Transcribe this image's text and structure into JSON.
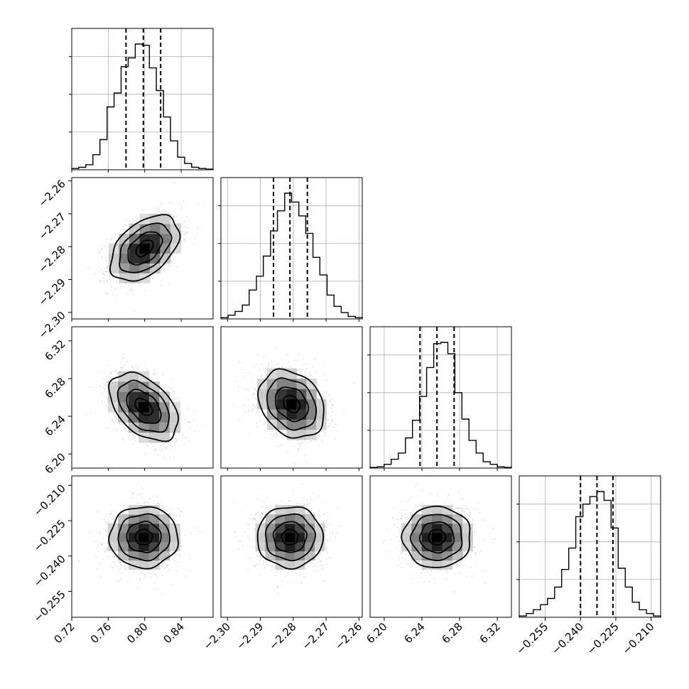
{
  "chart_data": {
    "type": "corner",
    "parameters": [
      {
        "ticks": [
          0.72,
          0.76,
          0.8,
          0.84
        ],
        "tick_labels": [
          "0.72",
          "0.76",
          "0.80",
          "0.84"
        ],
        "range": [
          0.72,
          0.875
        ],
        "mean": 0.7985,
        "std": 0.0188,
        "quantiles": [
          0.7795,
          0.7985,
          0.8175
        ],
        "hist": {
          "edges": [
            0.72,
            0.7277,
            0.7354,
            0.7432,
            0.7509,
            0.7587,
            0.7664,
            0.7741,
            0.7819,
            0.7896,
            0.7974,
            0.8051,
            0.8128,
            0.8206,
            0.8283,
            0.8361,
            0.8438,
            0.8515,
            0.8593,
            0.867,
            0.875
          ],
          "counts": [
            0.01,
            0.02,
            0.04,
            0.12,
            0.24,
            0.5,
            0.61,
            0.82,
            0.89,
            1.0,
            0.99,
            0.81,
            0.63,
            0.42,
            0.23,
            0.1,
            0.05,
            0.02,
            0.01,
            0.005
          ]
        }
      },
      {
        "ticks": [
          -2.3,
          -2.29,
          -2.28,
          -2.27,
          -2.26
        ],
        "tick_labels": [
          "−2.30",
          "−2.29",
          "−2.28",
          "−2.27",
          "−2.26"
        ],
        "range": [
          -2.302,
          -2.259
        ],
        "mean": -2.281,
        "std": 0.005,
        "quantiles": [
          -2.286,
          -2.281,
          -2.2757
        ],
        "hist": {
          "edges": [
            -2.302,
            -2.2998,
            -2.2977,
            -2.2955,
            -2.2934,
            -2.2912,
            -2.2891,
            -2.2869,
            -2.2848,
            -2.2826,
            -2.2805,
            -2.2783,
            -2.2762,
            -2.274,
            -2.2719,
            -2.2697,
            -2.2676,
            -2.2654,
            -2.2633,
            -2.2611,
            -2.259
          ],
          "counts": [
            0.01,
            0.03,
            0.06,
            0.11,
            0.23,
            0.34,
            0.5,
            0.7,
            0.86,
            1.0,
            0.93,
            0.82,
            0.68,
            0.49,
            0.35,
            0.19,
            0.1,
            0.05,
            0.02,
            0.01
          ]
        }
      },
      {
        "ticks": [
          6.2,
          6.24,
          6.28,
          6.32
        ],
        "tick_labels": [
          "6.20",
          "6.24",
          "6.28",
          "6.32"
        ],
        "range": [
          6.185,
          6.335
        ],
        "mean": 6.256,
        "std": 0.018,
        "quantiles": [
          6.238,
          6.256,
          6.2742
        ],
        "hist": {
          "edges": [
            6.185,
            6.1925,
            6.2,
            6.2075,
            6.215,
            6.2225,
            6.23,
            6.2375,
            6.245,
            6.2525,
            6.26,
            6.2675,
            6.275,
            6.2825,
            6.29,
            6.2975,
            6.305,
            6.3125,
            6.32,
            6.3275,
            6.335
          ],
          "counts": [
            0.005,
            0.01,
            0.03,
            0.07,
            0.12,
            0.24,
            0.38,
            0.57,
            0.8,
            0.99,
            1.0,
            0.91,
            0.6,
            0.39,
            0.22,
            0.12,
            0.05,
            0.03,
            0.01,
            0.005
          ]
        }
      },
      {
        "ticks": [
          -0.255,
          -0.24,
          -0.225,
          -0.21
        ],
        "tick_labels": [
          "−0.255",
          "−0.240",
          "−0.225",
          "−0.210"
        ],
        "range": [
          -0.266,
          -0.206
        ],
        "mean": -0.233,
        "std": 0.0065,
        "quantiles": [
          -0.24,
          -0.233,
          -0.2262
        ],
        "hist": {
          "edges": [
            -0.266,
            -0.263,
            -0.26,
            -0.257,
            -0.254,
            -0.251,
            -0.248,
            -0.245,
            -0.242,
            -0.239,
            -0.236,
            -0.233,
            -0.23,
            -0.227,
            -0.224,
            -0.221,
            -0.218,
            -0.215,
            -0.212,
            -0.209,
            -0.206
          ],
          "counts": [
            0.01,
            0.03,
            0.06,
            0.1,
            0.15,
            0.24,
            0.38,
            0.55,
            0.8,
            0.9,
            0.96,
            1.0,
            0.93,
            0.71,
            0.39,
            0.24,
            0.12,
            0.06,
            0.03,
            0.01
          ]
        }
      }
    ],
    "pairs": [
      {
        "x": 0,
        "y": 1,
        "correlation": 0.45,
        "peak": [
          0.8,
          -2.2805
        ]
      },
      {
        "x": 0,
        "y": 2,
        "correlation": -0.45,
        "peak": [
          0.799,
          6.25
        ]
      },
      {
        "x": 1,
        "y": 2,
        "correlation": -0.25,
        "peak": [
          -2.2805,
          6.253
        ]
      },
      {
        "x": 0,
        "y": 3,
        "correlation": 0.0,
        "peak": [
          0.799,
          -0.232
        ]
      },
      {
        "x": 1,
        "y": 3,
        "correlation": 0.0,
        "peak": [
          -2.281,
          -0.232
        ]
      },
      {
        "x": 2,
        "y": 3,
        "correlation": 0.0,
        "peak": [
          6.256,
          -0.232
        ]
      }
    ],
    "contour_levels_sigma": [
      0.5,
      1.0,
      1.5,
      2.0
    ],
    "grid": true,
    "colors": {
      "line": "#000000",
      "grid": "#b0b0b0",
      "points": "#a8a8a8"
    }
  }
}
